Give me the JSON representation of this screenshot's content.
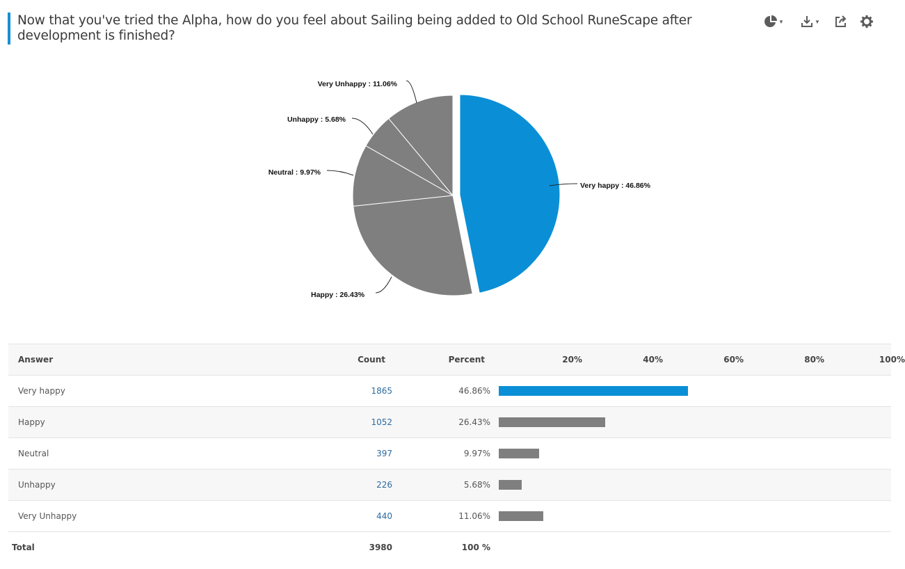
{
  "question": {
    "title": "Now that you've tried the Alpha, how do you feel about Sailing being added to Old School RuneScape after development is finished?"
  },
  "toolbar": {
    "icons": [
      "pie-chart-type-icon",
      "download-icon",
      "share-icon",
      "gear-icon"
    ]
  },
  "colors": {
    "accent": "#0a8fd6",
    "grey": "#7f7f7f",
    "title_bar": "#1a8fd1"
  },
  "chart_data": {
    "type": "pie",
    "title": "",
    "series": [
      {
        "name": "",
        "values": [
          {
            "label": "Very happy",
            "value": 46.86,
            "display": "Very happy : 46.86%",
            "color": "#0a8fd6",
            "exploded": true
          },
          {
            "label": "Happy",
            "value": 26.43,
            "display": "Happy : 26.43%",
            "color": "#7f7f7f"
          },
          {
            "label": "Neutral",
            "value": 9.97,
            "display": "Neutral : 9.97%",
            "color": "#7f7f7f"
          },
          {
            "label": "Unhappy",
            "value": 5.68,
            "display": "Unhappy : 5.68%",
            "color": "#7f7f7f"
          },
          {
            "label": "Very Unhappy",
            "value": 11.06,
            "display": "Very Unhappy : 11.06%",
            "color": "#7f7f7f"
          }
        ]
      }
    ],
    "legend": "none"
  },
  "table": {
    "headers": {
      "answer": "Answer",
      "count": "Count",
      "percent": "Percent"
    },
    "scale": [
      "20%",
      "40%",
      "60%",
      "80%",
      "100%"
    ],
    "rows": [
      {
        "answer": "Very happy",
        "count": "1865",
        "percent": "46.86%",
        "value": 46.86,
        "color": "#0a8fd6"
      },
      {
        "answer": "Happy",
        "count": "1052",
        "percent": "26.43%",
        "value": 26.43,
        "color": "#7f7f7f"
      },
      {
        "answer": "Neutral",
        "count": "397",
        "percent": "9.97%",
        "value": 9.97,
        "color": "#7f7f7f"
      },
      {
        "answer": "Unhappy",
        "count": "226",
        "percent": "5.68%",
        "value": 5.68,
        "color": "#7f7f7f"
      },
      {
        "answer": "Very Unhappy",
        "count": "440",
        "percent": "11.06%",
        "value": 11.06,
        "color": "#7f7f7f"
      }
    ],
    "total": {
      "label": "Total",
      "count": "3980",
      "percent": "100 %"
    }
  }
}
